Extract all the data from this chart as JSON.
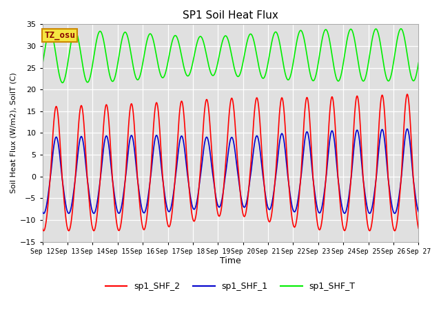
{
  "title": "SP1 Soil Heat Flux",
  "xlabel": "Time",
  "ylabel": "Soil Heat Flux (W/m2), SoilT (C)",
  "ylim": [
    -15,
    35
  ],
  "yticks": [
    -15,
    -10,
    -5,
    0,
    5,
    10,
    15,
    20,
    25,
    30,
    35
  ],
  "xtick_labels": [
    "Sep 12",
    "Sep 13",
    "Sep 14",
    "Sep 15",
    "Sep 16",
    "Sep 17",
    "Sep 18",
    "Sep 19",
    "Sep 20",
    "Sep 21",
    "Sep 22",
    "Sep 23",
    "Sep 24",
    "Sep 25",
    "Sep 26",
    "Sep 27"
  ],
  "legend_labels": [
    "sp1_SHF_2",
    "sp1_SHF_1",
    "sp1_SHF_T"
  ],
  "legend_colors": [
    "#ff0000",
    "#0000cc",
    "#00ee00"
  ],
  "bg_color": "#e0e0e0",
  "watermark_text": "TZ_osu",
  "watermark_bg": "#f5e642",
  "watermark_border": "#cc8800",
  "line_colors": [
    "#ff0000",
    "#0000cc",
    "#00ee00"
  ],
  "n_days": 15,
  "start_day": 12,
  "figsize": [
    6.4,
    4.8
  ],
  "dpi": 100
}
